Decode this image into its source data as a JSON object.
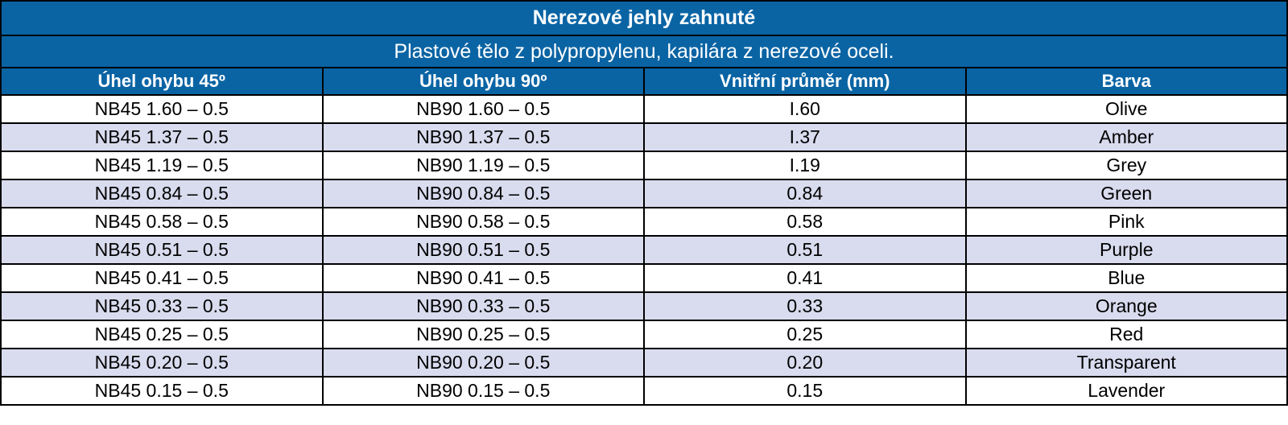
{
  "table": {
    "title": "Nerezové jehly zahnuté",
    "subtitle": "Plastové tělo z polypropylenu, kapilára z nerezové oceli.",
    "columns": [
      "Úhel ohybu 45º",
      "Úhel ohybu 90º",
      "Vnitřní průměr (mm)",
      "Barva"
    ],
    "rows": [
      [
        "NB45 1.60 – 0.5",
        "NB90 1.60 – 0.5",
        "I.60",
        "Olive"
      ],
      [
        "NB45 1.37 – 0.5",
        "NB90 1.37 – 0.5",
        "I.37",
        "Amber"
      ],
      [
        "NB45 1.19 – 0.5",
        "NB90 1.19 – 0.5",
        "I.19",
        "Grey"
      ],
      [
        "NB45 0.84 – 0.5",
        "NB90 0.84 – 0.5",
        "0.84",
        "Green"
      ],
      [
        "NB45 0.58 – 0.5",
        "NB90 0.58 – 0.5",
        "0.58",
        "Pink"
      ],
      [
        "NB45 0.51 – 0.5",
        "NB90 0.51 – 0.5",
        "0.51",
        "Purple"
      ],
      [
        "NB45 0.41 – 0.5",
        "NB90 0.41 – 0.5",
        "0.41",
        "Blue"
      ],
      [
        "NB45 0.33 – 0.5",
        "NB90 0.33 – 0.5",
        "0.33",
        "Orange"
      ],
      [
        "NB45 0.25 – 0.5",
        "NB90 0.25 – 0.5",
        "0.25",
        "Red"
      ],
      [
        "NB45 0.20 – 0.5",
        "NB90 0.20 – 0.5",
        "0.20",
        "Transparent"
      ],
      [
        "NB45 0.15 – 0.5",
        "NB90 0.15 – 0.5",
        "0.15",
        "Lavender"
      ]
    ]
  },
  "colors": {
    "header_bg": "#0a64a4",
    "header_text": "#ffffff",
    "stripe_bg": "#d9dbee",
    "row_bg": "#ffffff",
    "border": "#000000"
  }
}
